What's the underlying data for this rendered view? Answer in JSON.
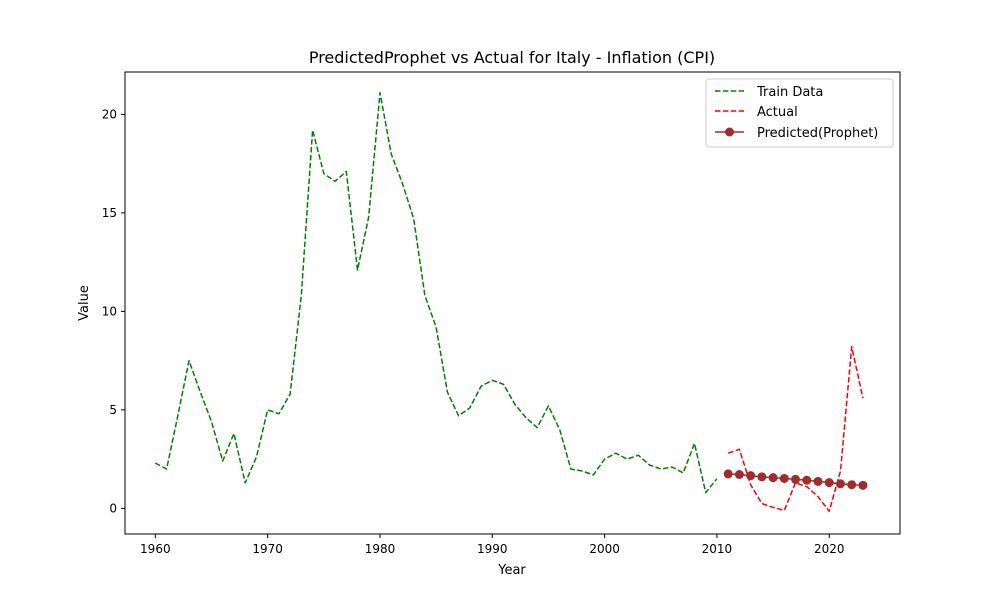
{
  "chart_data": {
    "type": "line",
    "title": "PredictedProphet vs Actual for Italy - Inflation (CPI)",
    "xlabel": "Year",
    "ylabel": "Value",
    "xlim": [
      1957.3,
      2026.3
    ],
    "ylim": [
      -1.3,
      22.15
    ],
    "xticks": [
      1960,
      1970,
      1980,
      1990,
      2000,
      2010,
      2020
    ],
    "yticks": [
      0,
      5,
      10,
      15,
      20
    ],
    "grid": false,
    "legend_position": "top-right",
    "series": [
      {
        "name": "Train Data",
        "style": "dashed",
        "color": "#008000",
        "x": [
          1960,
          1961,
          1962,
          1963,
          1964,
          1965,
          1966,
          1967,
          1968,
          1969,
          1970,
          1971,
          1972,
          1973,
          1974,
          1975,
          1976,
          1977,
          1978,
          1979,
          1980,
          1981,
          1982,
          1983,
          1984,
          1985,
          1986,
          1987,
          1988,
          1989,
          1990,
          1991,
          1992,
          1993,
          1994,
          1995,
          1996,
          1997,
          1998,
          1999,
          2000,
          2001,
          2002,
          2003,
          2004,
          2005,
          2006,
          2007,
          2008,
          2009,
          2010
        ],
        "values": [
          2.3,
          2.0,
          4.7,
          7.5,
          5.9,
          4.4,
          2.4,
          3.8,
          1.3,
          2.6,
          5.0,
          4.8,
          5.8,
          10.8,
          19.2,
          17.0,
          16.6,
          17.1,
          12.1,
          14.8,
          21.1,
          18.0,
          16.5,
          14.7,
          10.8,
          9.2,
          5.9,
          4.7,
          5.1,
          6.2,
          6.5,
          6.3,
          5.3,
          4.6,
          4.1,
          5.2,
          4.0,
          2.0,
          1.9,
          1.7,
          2.5,
          2.8,
          2.5,
          2.7,
          2.2,
          2.0,
          2.1,
          1.8,
          3.3,
          0.8,
          1.5
        ]
      },
      {
        "name": "Actual",
        "style": "dashed",
        "color": "#ff0000",
        "x": [
          2011,
          2012,
          2013,
          2014,
          2015,
          2016,
          2017,
          2018,
          2019,
          2020,
          2021,
          2022,
          2023
        ],
        "values": [
          2.8,
          3.0,
          1.2,
          0.25,
          0.05,
          -0.1,
          1.3,
          1.1,
          0.6,
          -0.15,
          1.9,
          8.2,
          5.6
        ]
      },
      {
        "name": "Predicted(Prophet)",
        "style": "solid-markers",
        "color": "#a52a2a",
        "x": [
          2011,
          2012,
          2013,
          2014,
          2015,
          2016,
          2017,
          2018,
          2019,
          2020,
          2021,
          2022,
          2023
        ],
        "values": [
          1.75,
          1.72,
          1.66,
          1.6,
          1.56,
          1.52,
          1.47,
          1.43,
          1.37,
          1.31,
          1.25,
          1.2,
          1.17
        ]
      }
    ]
  }
}
